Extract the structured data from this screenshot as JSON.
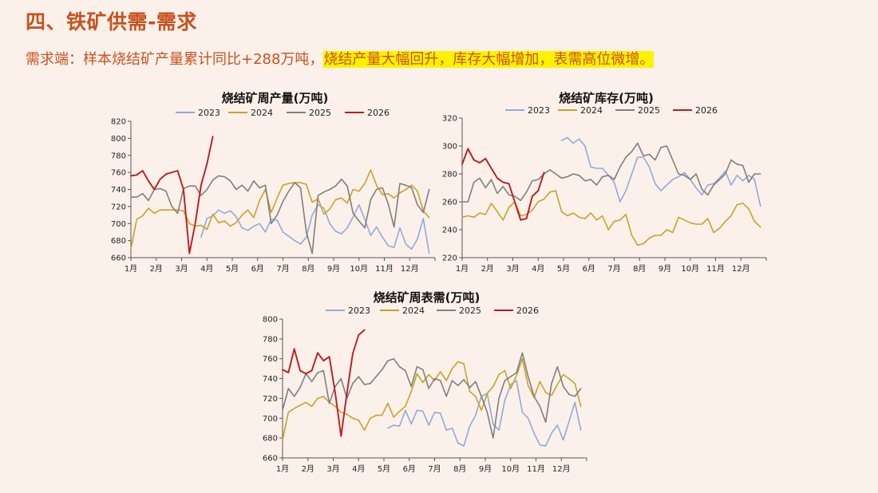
{
  "page": {
    "title": "四、铁矿供需-需求",
    "subtitle_plain": "需求端：样本烧结矿产量累计同比+288万吨，",
    "subtitle_highlight": "烧结产量大幅回升，库存大幅增加，表需高位微增。"
  },
  "colors": {
    "2023": "#8faadc",
    "2024": "#c9a227",
    "2025": "#7f7f7f",
    "2026": "#c0191e"
  },
  "chart_data": [
    {
      "type": "line",
      "title": "烧结矿周产量(万吨)",
      "legend": [
        "2023",
        "2024",
        "2025",
        "2026"
      ],
      "legend_position": "top",
      "x_ticks": [
        "1月",
        "2月",
        "3月",
        "4月",
        "5月",
        "6月",
        "7月",
        "8月",
        "9月",
        "10月",
        "11月",
        "12月"
      ],
      "xlim": [
        0,
        52
      ],
      "ylim": [
        660,
        820
      ],
      "y_ticks": [
        660,
        680,
        700,
        720,
        740,
        760,
        780,
        800,
        820
      ],
      "series": [
        {
          "name": "2023",
          "x": [
            12,
            13,
            14,
            15,
            16,
            17,
            18,
            19,
            20,
            21,
            22,
            23,
            24,
            25,
            26,
            27,
            28,
            29,
            30,
            31,
            32,
            33,
            34,
            35,
            36,
            37,
            38,
            39,
            40,
            41,
            42,
            43,
            44,
            45,
            46,
            47,
            48,
            49,
            50,
            51
          ],
          "y": [
            684,
            706,
            709,
            716,
            712,
            715,
            708,
            695,
            692,
            697,
            700,
            690,
            705,
            704,
            690,
            685,
            680,
            676,
            684,
            710,
            722,
            718,
            700,
            691,
            688,
            695,
            708,
            722,
            705,
            686,
            696,
            684,
            674,
            672,
            695,
            676,
            670,
            682,
            706,
            665
          ]
        },
        {
          "name": "2024",
          "x": [
            0,
            1,
            2,
            3,
            4,
            5,
            6,
            7,
            8,
            9,
            10,
            11,
            12,
            13,
            14,
            15,
            16,
            17,
            18,
            19,
            20,
            21,
            22,
            23,
            24,
            25,
            26,
            27,
            28,
            29,
            30,
            31,
            32,
            33,
            34,
            35,
            36,
            37,
            38,
            39,
            40,
            41,
            42,
            43,
            44,
            45,
            46,
            47,
            48,
            49,
            50,
            51
          ],
          "y": [
            670,
            705,
            709,
            718,
            712,
            716,
            716,
            716,
            716,
            715,
            700,
            697,
            698,
            693,
            711,
            701,
            703,
            697,
            701,
            710,
            716,
            707,
            727,
            740,
            713,
            730,
            745,
            747,
            748,
            748,
            746,
            725,
            729,
            711,
            717,
            728,
            730,
            724,
            740,
            738,
            747,
            763,
            745,
            734,
            735,
            730,
            736,
            740,
            745,
            738,
            715,
            707
          ]
        },
        {
          "name": "2025",
          "x": [
            0,
            1,
            2,
            3,
            4,
            5,
            6,
            7,
            8,
            9,
            10,
            11,
            12,
            13,
            14,
            15,
            16,
            17,
            18,
            19,
            20,
            21,
            22,
            23,
            24,
            25,
            26,
            27,
            28,
            29,
            30,
            31,
            32,
            33,
            34,
            35,
            36,
            37,
            38,
            39,
            40,
            41,
            42,
            43,
            44,
            45,
            46,
            47,
            48,
            49,
            50,
            51
          ],
          "y": [
            731,
            731,
            735,
            727,
            740,
            741,
            738,
            720,
            712,
            741,
            744,
            744,
            733,
            740,
            751,
            756,
            755,
            750,
            740,
            745,
            738,
            750,
            742,
            745,
            700,
            710,
            726,
            738,
            748,
            742,
            690,
            665,
            733,
            737,
            740,
            744,
            752,
            744,
            712,
            703,
            695,
            728,
            740,
            742,
            723,
            696,
            747,
            745,
            742,
            722,
            713,
            740
          ]
        },
        {
          "name": "2026",
          "x": [
            0,
            1,
            2,
            3,
            4,
            5,
            6,
            7,
            8,
            9,
            10,
            11,
            12,
            13,
            14
          ],
          "y": [
            756,
            757,
            762,
            750,
            740,
            752,
            758,
            760,
            762,
            740,
            665,
            700,
            745,
            770,
            802
          ]
        }
      ]
    },
    {
      "type": "line",
      "title": "烧结矿库存(万吨)",
      "legend": [
        "2023",
        "2024",
        "2025",
        "2026"
      ],
      "legend_position": "top",
      "x_ticks": [
        "1月",
        "2月",
        "3月",
        "4月",
        "5月",
        "6月",
        "7月",
        "8月",
        "9月",
        "10月",
        "11月",
        "12月"
      ],
      "xlim": [
        0,
        52
      ],
      "ylim": [
        220,
        320
      ],
      "y_ticks": [
        220,
        240,
        260,
        280,
        300,
        320
      ],
      "series": [
        {
          "name": "2023",
          "x": [
            17,
            18,
            19,
            20,
            21,
            22,
            23,
            24,
            25,
            26,
            27,
            28,
            29,
            30,
            31,
            32,
            33,
            34,
            35,
            36,
            37,
            38,
            39,
            40,
            41,
            42,
            43,
            44,
            45,
            46,
            47,
            48,
            49,
            50,
            51
          ],
          "y": [
            304,
            306,
            302,
            305,
            300,
            285,
            284,
            284,
            279,
            274,
            260,
            268,
            280,
            292,
            292,
            285,
            273,
            268,
            272,
            276,
            278,
            281,
            276,
            270,
            265,
            272,
            273,
            277,
            282,
            272,
            279,
            275,
            279,
            276,
            257
          ]
        },
        {
          "name": "2024",
          "x": [
            0,
            1,
            2,
            3,
            4,
            5,
            6,
            7,
            8,
            9,
            10,
            11,
            12,
            13,
            14,
            15,
            16,
            17,
            18,
            19,
            20,
            21,
            22,
            23,
            24,
            25,
            26,
            27,
            28,
            29,
            30,
            31,
            32,
            33,
            34,
            35,
            36,
            37,
            38,
            39,
            40,
            41,
            42,
            43,
            44,
            45,
            46,
            47,
            48,
            49,
            50,
            51
          ],
          "y": [
            249,
            250,
            249,
            252,
            251,
            259,
            253,
            247,
            256,
            260,
            250,
            251,
            254,
            260,
            262,
            267,
            268,
            253,
            250,
            252,
            249,
            248,
            252,
            247,
            250,
            240,
            246,
            247,
            251,
            236,
            229,
            230,
            234,
            236,
            236,
            240,
            238,
            249,
            247,
            245,
            244,
            244,
            248,
            238,
            241,
            246,
            250,
            258,
            259,
            255,
            246,
            242
          ]
        },
        {
          "name": "2025",
          "x": [
            0,
            1,
            2,
            3,
            4,
            5,
            6,
            7,
            8,
            9,
            10,
            11,
            12,
            13,
            14,
            15,
            16,
            17,
            18,
            19,
            20,
            21,
            22,
            23,
            24,
            25,
            26,
            27,
            28,
            29,
            30,
            31,
            32,
            33,
            34,
            35,
            36,
            37,
            38,
            39,
            40,
            41,
            42,
            43,
            44,
            45,
            46,
            47,
            48,
            49,
            50,
            51
          ],
          "y": [
            260,
            260,
            274,
            277,
            270,
            276,
            266,
            271,
            265,
            264,
            261,
            267,
            275,
            276,
            280,
            283,
            280,
            277,
            278,
            280,
            279,
            275,
            276,
            272,
            278,
            279,
            276,
            285,
            292,
            296,
            302,
            293,
            294,
            290,
            299,
            300,
            290,
            280,
            279,
            276,
            280,
            269,
            265,
            272,
            276,
            280,
            290,
            287,
            286,
            274,
            280,
            280
          ]
        },
        {
          "name": "2026",
          "x": [
            0,
            1,
            2,
            3,
            4,
            5,
            6,
            7,
            8,
            9,
            10,
            11,
            12,
            13,
            14
          ],
          "y": [
            287,
            298,
            290,
            288,
            291,
            284,
            277,
            274,
            273,
            260,
            247,
            248,
            264,
            268,
            281
          ]
        }
      ]
    },
    {
      "type": "line",
      "title": "烧结矿周表需(万吨)",
      "legend": [
        "2023",
        "2024",
        "2025",
        "2026"
      ],
      "legend_position": "top",
      "x_ticks": [
        "1月",
        "2月",
        "3月",
        "4月",
        "5月",
        "6月",
        "7月",
        "8月",
        "9月",
        "10月",
        "11月",
        "12月"
      ],
      "xlim": [
        0,
        52
      ],
      "ylim": [
        660,
        800
      ],
      "y_ticks": [
        660,
        680,
        700,
        720,
        740,
        760,
        780,
        800
      ],
      "series": [
        {
          "name": "2023",
          "x": [
            18,
            19,
            20,
            21,
            22,
            23,
            24,
            25,
            26,
            27,
            28,
            29,
            30,
            31,
            32,
            33,
            34,
            35,
            36,
            37,
            38,
            39,
            40,
            41,
            42,
            43,
            44,
            45,
            46,
            47,
            48,
            49,
            50,
            51
          ],
          "y": [
            690,
            693,
            692,
            708,
            694,
            708,
            707,
            693,
            706,
            705,
            688,
            690,
            675,
            672,
            692,
            703,
            722,
            725,
            694,
            688,
            718,
            734,
            738,
            706,
            700,
            685,
            673,
            672,
            685,
            693,
            678,
            697,
            716,
            688
          ]
        },
        {
          "name": "2024",
          "x": [
            0,
            1,
            2,
            3,
            4,
            5,
            6,
            7,
            8,
            9,
            10,
            11,
            12,
            13,
            14,
            15,
            16,
            17,
            18,
            19,
            20,
            21,
            22,
            23,
            24,
            25,
            26,
            27,
            28,
            29,
            30,
            31,
            32,
            33,
            34,
            35,
            36,
            37,
            38,
            39,
            40,
            41,
            42,
            43,
            44,
            45,
            46,
            47,
            48,
            49,
            50,
            51
          ],
          "y": [
            678,
            706,
            710,
            713,
            716,
            712,
            720,
            722,
            716,
            712,
            706,
            704,
            700,
            698,
            688,
            700,
            703,
            703,
            715,
            701,
            707,
            712,
            727,
            745,
            736,
            744,
            738,
            747,
            738,
            750,
            757,
            755,
            727,
            722,
            708,
            725,
            732,
            744,
            748,
            730,
            743,
            760,
            733,
            721,
            737,
            726,
            723,
            734,
            744,
            740,
            735,
            712
          ]
        },
        {
          "name": "2025",
          "x": [
            0,
            1,
            2,
            3,
            4,
            5,
            6,
            7,
            8,
            9,
            10,
            11,
            12,
            13,
            14,
            15,
            16,
            17,
            18,
            19,
            20,
            21,
            22,
            23,
            24,
            25,
            26,
            27,
            28,
            29,
            30,
            31,
            32,
            33,
            34,
            35,
            36,
            37,
            38,
            39,
            40,
            41,
            42,
            43,
            44,
            45,
            46,
            47,
            48,
            49,
            50,
            51
          ],
          "y": [
            708,
            730,
            722,
            731,
            745,
            737,
            746,
            748,
            715,
            732,
            740,
            720,
            735,
            742,
            734,
            735,
            742,
            749,
            758,
            760,
            752,
            748,
            732,
            752,
            749,
            730,
            740,
            738,
            722,
            738,
            733,
            739,
            731,
            737,
            722,
            706,
            680,
            720,
            738,
            742,
            746,
            766,
            742,
            722,
            712,
            696,
            735,
            752,
            732,
            724,
            722,
            730
          ]
        },
        {
          "name": "2026",
          "x": [
            0,
            1,
            2,
            3,
            4,
            5,
            6,
            7,
            8,
            9,
            10,
            11,
            12,
            13,
            14
          ],
          "y": [
            749,
            746,
            770,
            748,
            745,
            748,
            766,
            758,
            762,
            726,
            682,
            725,
            765,
            784,
            789
          ]
        }
      ]
    }
  ]
}
